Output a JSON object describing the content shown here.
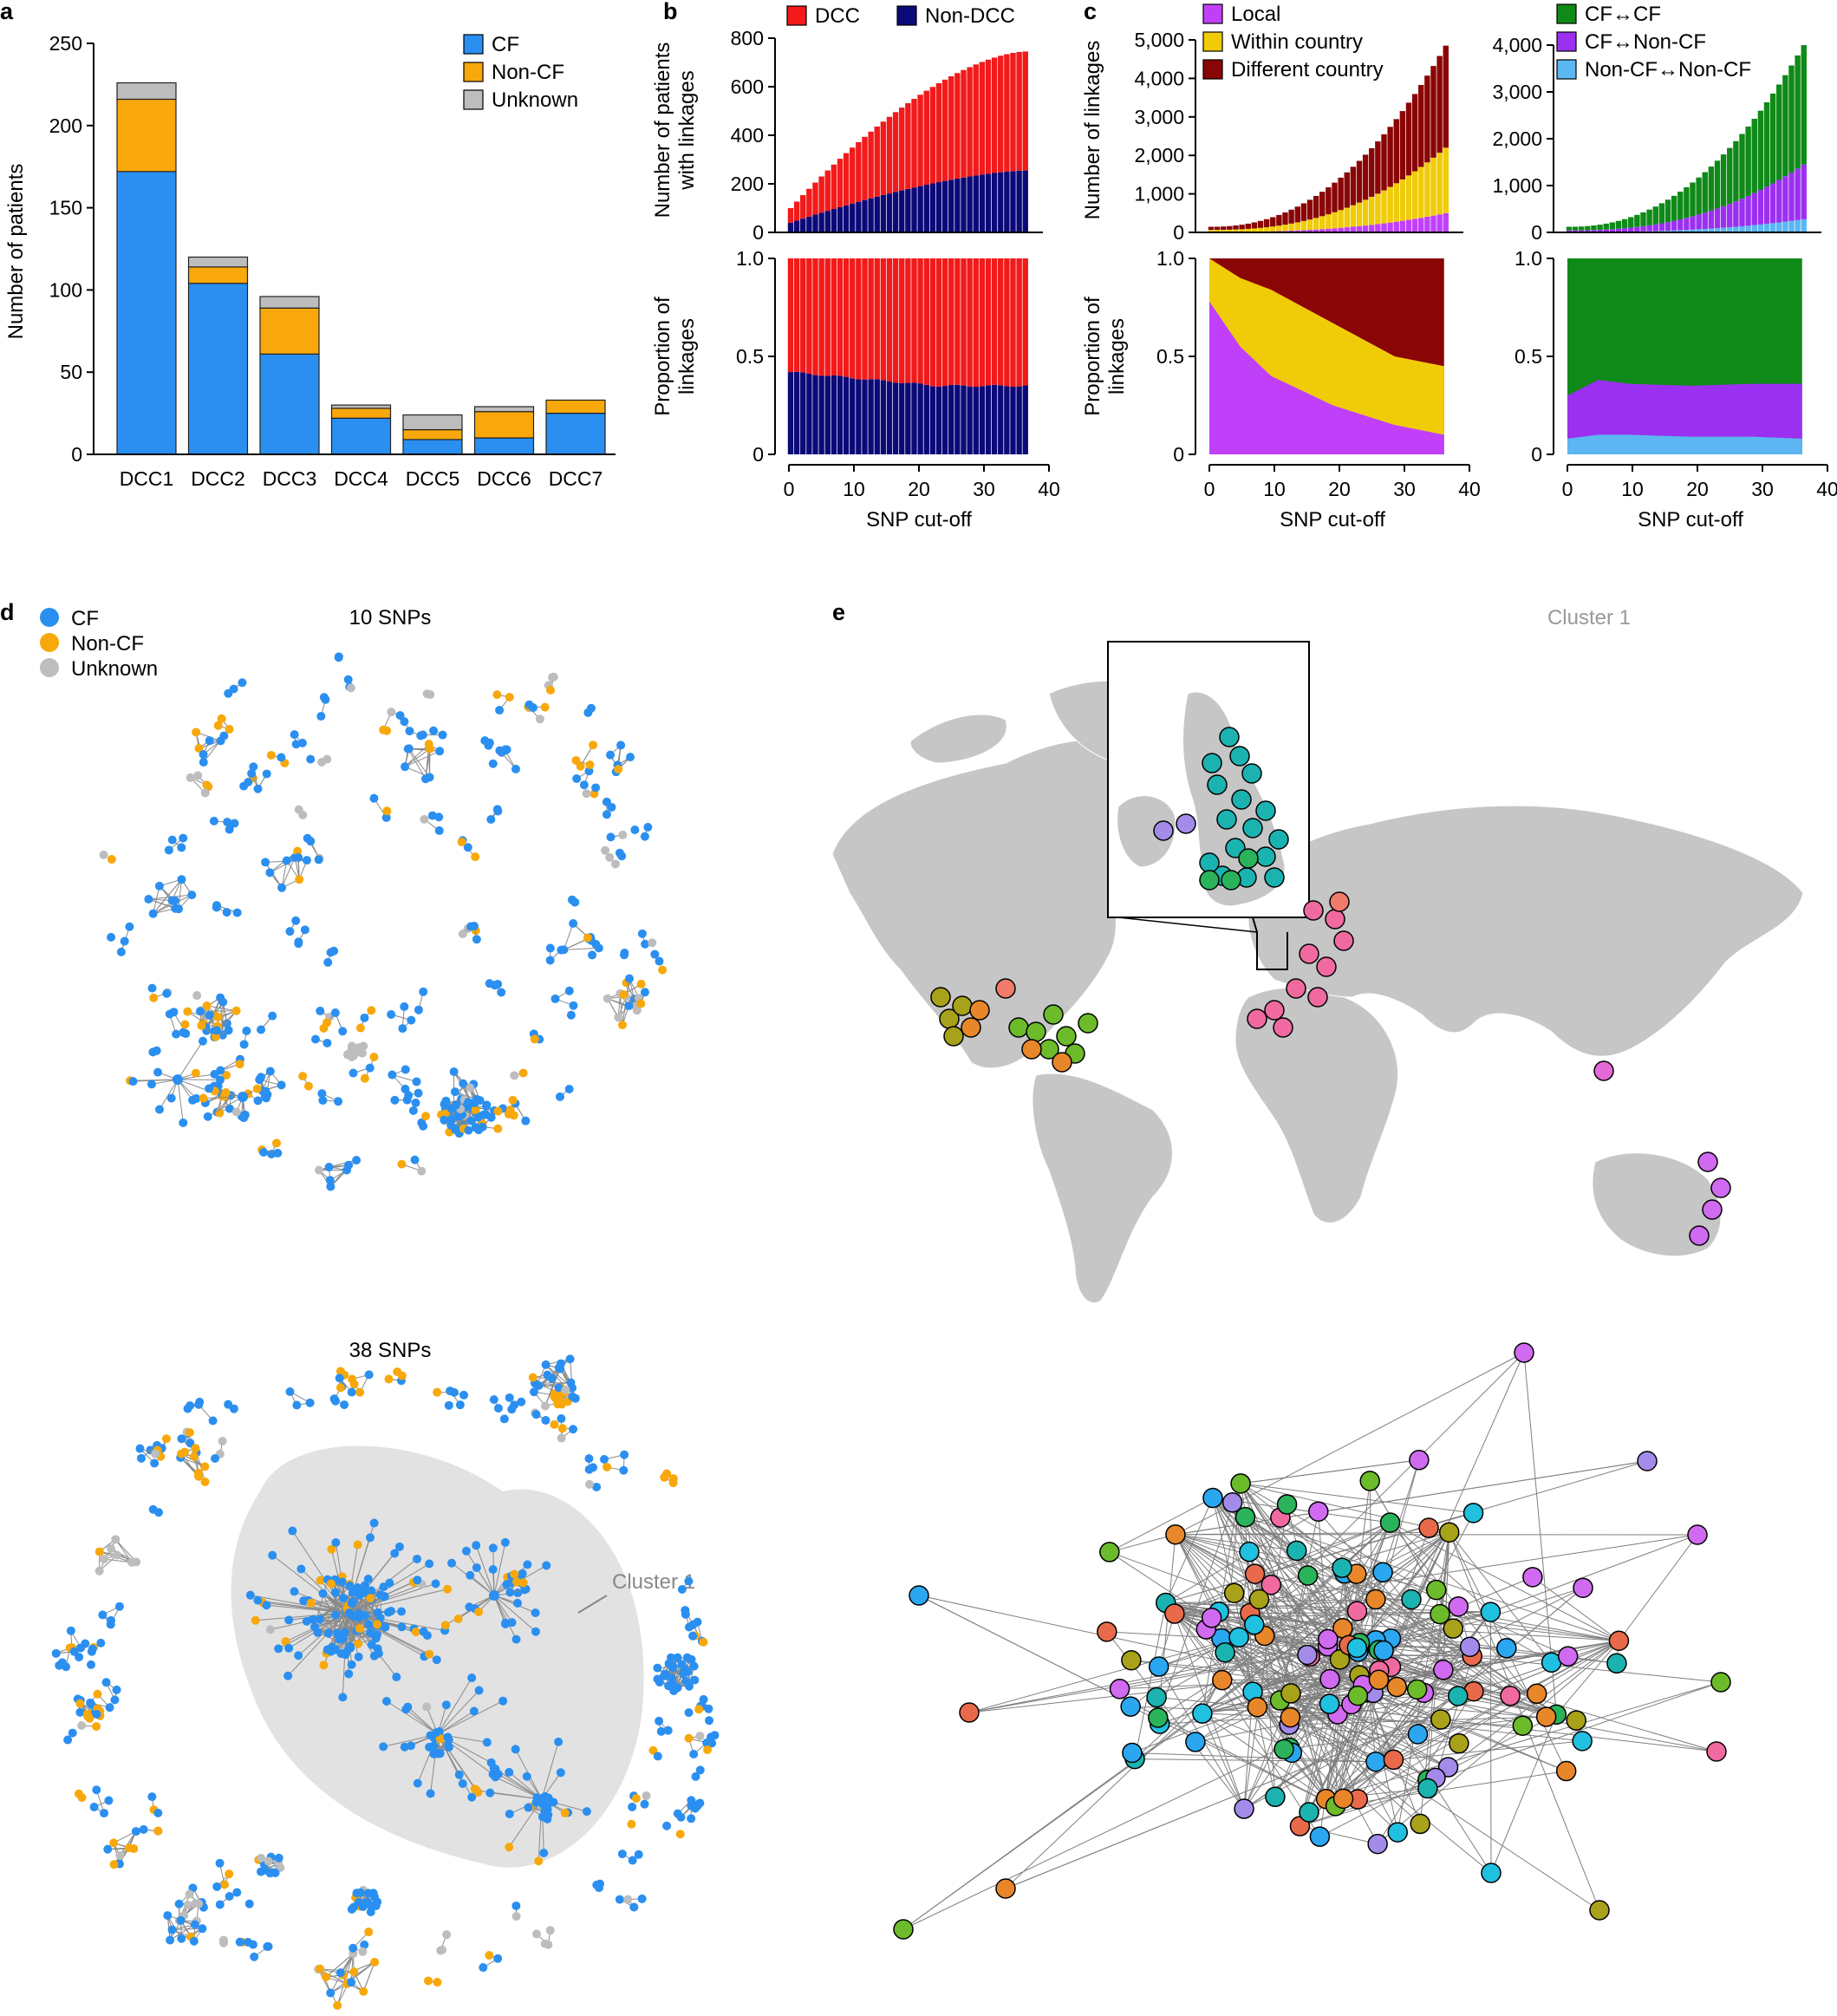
{
  "panel_labels": {
    "a": "a",
    "b": "b",
    "c": "c",
    "d": "d",
    "e": "e"
  },
  "chart_data": [
    {
      "id": "a",
      "type": "bar",
      "stacked": true,
      "categories": [
        "DCC1",
        "DCC2",
        "DCC3",
        "DCC4",
        "DCC5",
        "DCC6",
        "DCC7"
      ],
      "series": [
        {
          "name": "CF",
          "color": "#2a8ff0",
          "values": [
            172,
            104,
            61,
            22,
            9,
            10,
            25
          ]
        },
        {
          "name": "Non-CF",
          "color": "#f8a80a",
          "values": [
            44,
            10,
            28,
            6,
            6,
            16,
            8
          ]
        },
        {
          "name": "Unknown",
          "color": "#bdbdbd",
          "values": [
            10,
            6,
            7,
            2,
            9,
            3,
            0
          ]
        }
      ],
      "ylabel": "Number of patients",
      "ylim": [
        0,
        250
      ],
      "yticks": [
        "0",
        "50",
        "100",
        "150",
        "200",
        "250"
      ],
      "legend": "top-right",
      "grid": false
    },
    {
      "id": "b-top",
      "type": "bar",
      "stacked": true,
      "x_range": [
        0,
        38
      ],
      "series": [
        {
          "name": "DCC",
          "color": "#f21a1a",
          "cumulative_total_endpoints": [
            100,
            745
          ]
        },
        {
          "name": "Non-DCC",
          "color": "#0b0a78",
          "cumulative_total_endpoints": [
            40,
            255
          ]
        }
      ],
      "ylabel": "Number of patients with linkages",
      "ylim": [
        0,
        800
      ],
      "yticks": [
        "0",
        "200",
        "400",
        "600",
        "800"
      ],
      "legend": "top"
    },
    {
      "id": "b-bottom",
      "type": "bar",
      "stacked": true,
      "proportion_nondcc_start": 0.42,
      "proportion_nondcc_end": 0.35,
      "xlabel": "SNP cut-off",
      "ylabel": "Proportion of linkages",
      "ylim": [
        0,
        1.0
      ],
      "yticks": [
        "0",
        "0.5",
        "1.0"
      ],
      "xticks": [
        "0",
        "10",
        "20",
        "30",
        "40"
      ]
    },
    {
      "id": "c-location-top",
      "type": "bar",
      "stacked": true,
      "series": [
        {
          "name": "Local",
          "color": "#c040fa",
          "end_value": 500
        },
        {
          "name": "Within country",
          "color": "#f0cc08",
          "end_value": 2200
        },
        {
          "name": "Different country",
          "color": "#8a0505",
          "end_value": 4850
        }
      ],
      "ylabel": "Number of linkages",
      "ylim": [
        0,
        5000
      ],
      "yticks": [
        "0",
        "1,000",
        "2,000",
        "3,000",
        "4,000",
        "5,000"
      ]
    },
    {
      "id": "c-location-bottom",
      "type": "area",
      "series": [
        {
          "name": "Local",
          "points": [
            [
              0,
              0.78
            ],
            [
              5,
              0.55
            ],
            [
              10,
              0.4
            ],
            [
              20,
              0.25
            ],
            [
              30,
              0.15
            ],
            [
              38,
              0.1
            ]
          ]
        },
        {
          "name": "Within country",
          "points": [
            [
              0,
              1.0
            ],
            [
              5,
              0.9
            ],
            [
              10,
              0.84
            ],
            [
              20,
              0.67
            ],
            [
              30,
              0.5
            ],
            [
              38,
              0.45
            ]
          ]
        }
      ],
      "xlabel": "SNP cut-off",
      "ylabel": "Proportion of linkages",
      "ylim": [
        0,
        1.0
      ],
      "yticks": [
        "0",
        "0.5",
        "1.0"
      ],
      "xticks": [
        "0",
        "10",
        "20",
        "30",
        "40"
      ]
    },
    {
      "id": "c-cf-top",
      "type": "bar",
      "stacked": true,
      "series": [
        {
          "name": "Non-CF↔Non-CF",
          "color": "#5bb6f2",
          "end_value": 280
        },
        {
          "name": "CF↔Non-CF",
          "color": "#9b30f0",
          "end_value": 1450
        },
        {
          "name": "CF↔CF",
          "color": "#0f8a18",
          "end_value": 4000
        }
      ],
      "legend_labels": [
        "CF↔CF",
        "CF↔Non-CF",
        "Non-CF↔Non-CF"
      ],
      "ylim": [
        0,
        4000
      ],
      "yticks": [
        "0",
        "1,000",
        "2,000",
        "3,000",
        "4,000"
      ]
    },
    {
      "id": "c-cf-bottom",
      "type": "area",
      "series": [
        {
          "name": "Non-CF↔Non-CF",
          "points": [
            [
              0,
              0.08
            ],
            [
              5,
              0.1
            ],
            [
              10,
              0.1
            ],
            [
              20,
              0.09
            ],
            [
              30,
              0.09
            ],
            [
              38,
              0.08
            ]
          ]
        },
        {
          "name": "CF↔Non-CF",
          "points": [
            [
              0,
              0.3
            ],
            [
              5,
              0.38
            ],
            [
              10,
              0.36
            ],
            [
              20,
              0.35
            ],
            [
              30,
              0.36
            ],
            [
              38,
              0.36
            ]
          ]
        }
      ],
      "xlabel": "SNP cut-off",
      "ylim": [
        0,
        1.0
      ],
      "yticks": [
        "0",
        "0.5",
        "1.0"
      ],
      "xticks": [
        "0",
        "10",
        "20",
        "30",
        "40"
      ]
    }
  ],
  "network_d": {
    "legend": [
      {
        "label": "CF",
        "color": "#2a8ff0"
      },
      {
        "label": "Non-CF",
        "color": "#f8a80a"
      },
      {
        "label": "Unknown",
        "color": "#bdbdbd"
      }
    ],
    "title_top": "10 SNPs",
    "title_bottom": "38 SNPs",
    "cluster_label": "Cluster 1"
  },
  "panel_e": {
    "title": "Cluster 1",
    "land_color": "#c6c6c6"
  }
}
